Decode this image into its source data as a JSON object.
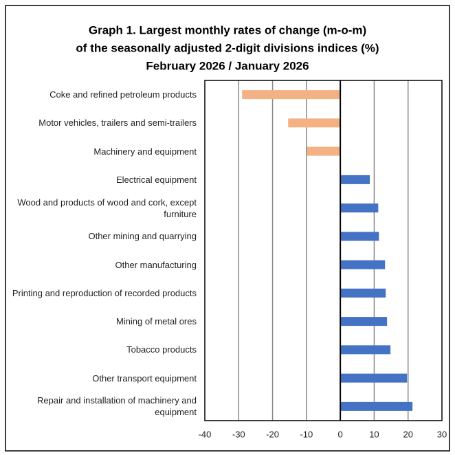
{
  "chart_data": {
    "type": "hbar",
    "title": [
      "Graph 1. Largest monthly rates of change (m-o-m)",
      "of the seasonally adjusted 2-digit divisions indices (%)",
      "February 2026 / January 2026"
    ],
    "categories": [
      "Coke and refined petroleum products",
      "Motor vehicles, trailers and semi-trailers",
      "Machinery and equipment",
      "Electrical equipment",
      "Wood and products of wood and cork, except furniture",
      "Other mining and quarrying",
      "Other manufacturing",
      "Printing and reproduction of recorded products",
      "Mining of metal ores",
      "Tobacco products",
      "Other transport equipment",
      "Repair and installation of machinery and equipment"
    ],
    "values": [
      -29.0,
      -15.4,
      -9.9,
      8.7,
      11.2,
      11.4,
      13.2,
      13.4,
      13.8,
      14.8,
      19.7,
      21.3
    ],
    "colors": [
      "#f4b183",
      "#f4b183",
      "#f4b183",
      "#4472c4",
      "#4472c4",
      "#4472c4",
      "#4472c4",
      "#4472c4",
      "#4472c4",
      "#4472c4",
      "#4472c4",
      "#4472c4"
    ],
    "xlim": [
      -40,
      30
    ],
    "xticks": [
      -40,
      -30,
      -20,
      -10,
      0,
      10,
      20,
      30
    ],
    "grid": true
  }
}
